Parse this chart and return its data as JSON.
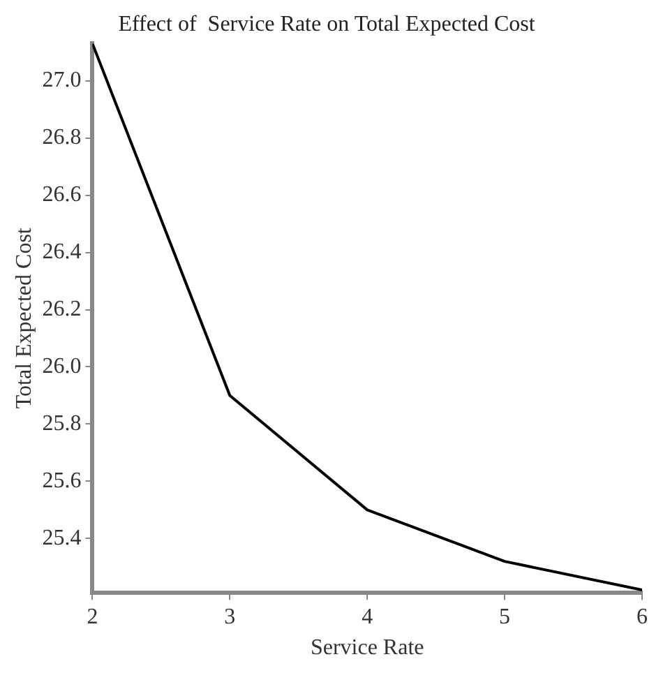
{
  "chart_data": {
    "type": "line",
    "title": "Effect of  Service Rate on Total Expected Cost",
    "xlabel": "Service Rate",
    "ylabel": "Total Expected Cost",
    "x": [
      2,
      3,
      4,
      5,
      6
    ],
    "series": [
      {
        "color": "#000000",
        "values": [
          27.13,
          25.9,
          25.5,
          25.32,
          25.22
        ]
      }
    ],
    "xlim": [
      2,
      6
    ],
    "xticks": [
      2,
      3,
      4,
      5,
      6
    ],
    "ylim": [
      25.21,
      27.13
    ],
    "yticks": [
      25.4,
      25.6,
      25.8,
      {
        "value": 26,
        "label": "26.0"
      },
      26.2,
      26.4,
      26.6,
      26.8,
      {
        "value": 27,
        "label": "27.0"
      }
    ],
    "grid": false,
    "legend": false,
    "marker": "none",
    "line_style": "solid"
  }
}
